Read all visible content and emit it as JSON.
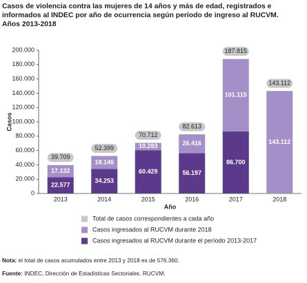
{
  "chart_data": {
    "type": "stacked-bar",
    "title": "Casos de violencia contra las mujeres de 14 años y más de edad, registrados e informados al INDEC por año de ocurrencia según período de ingreso al RUCVM.",
    "subtitle": "Años 2013-2018",
    "x_label": "Año",
    "y_label": "Casos",
    "categories": [
      "2013",
      "2014",
      "2015",
      "2016",
      "2017",
      "2018"
    ],
    "series": [
      {
        "name": "Casos ingresados al RUCVM durante el período 2013-2017",
        "color": "#5b3a8c",
        "values": [
          22577,
          34253,
          60429,
          56197,
          86700,
          null
        ],
        "value_labels": [
          "22.577",
          "34.253",
          "60.429",
          "56.197",
          "86.700",
          null
        ]
      },
      {
        "name": "Casos ingresados al RUCVM durante 2018",
        "color": "#a58fc9",
        "values": [
          17132,
          18146,
          10283,
          26416,
          101115,
          143112
        ],
        "value_labels": [
          "17.132",
          "18.146",
          "10.283",
          "26.416",
          "101.115",
          "143.112"
        ]
      }
    ],
    "totals": {
      "name": "Total de casos correspondientes a cada año",
      "color": "#c8c8c8",
      "values": [
        39709,
        52399,
        70712,
        82613,
        187815,
        143112
      ],
      "value_labels": [
        "39.709",
        "52.399",
        "70.712",
        "82.613",
        "187.815",
        "143.112"
      ]
    },
    "ylim": [
      0,
      200000
    ],
    "yticks": [
      0,
      {
        "value": 20000,
        "label": "20.000"
      },
      {
        "value": 40000,
        "label": "40.000"
      },
      {
        "value": 60000,
        "label": "60.000"
      },
      {
        "value": 80000,
        "label": "80.000"
      },
      {
        "value": 100000,
        "label": "100.000"
      },
      {
        "value": 120000,
        "label": "120.000"
      },
      {
        "value": 140000,
        "label": "140.000"
      },
      {
        "value": 160000,
        "label": "160.000"
      },
      {
        "value": 180000,
        "label": "180.000"
      },
      {
        "value": 200000,
        "label": "200.000"
      }
    ],
    "grid": false
  },
  "notes": {
    "label": "Nota:",
    "text": "el total de casos acumulados entre 2013 y 2018 es de 576.360."
  },
  "source": {
    "label": "Fuente:",
    "text": "INDEC, Dirección de Estadísticas Sectoriales. RUCVM."
  }
}
